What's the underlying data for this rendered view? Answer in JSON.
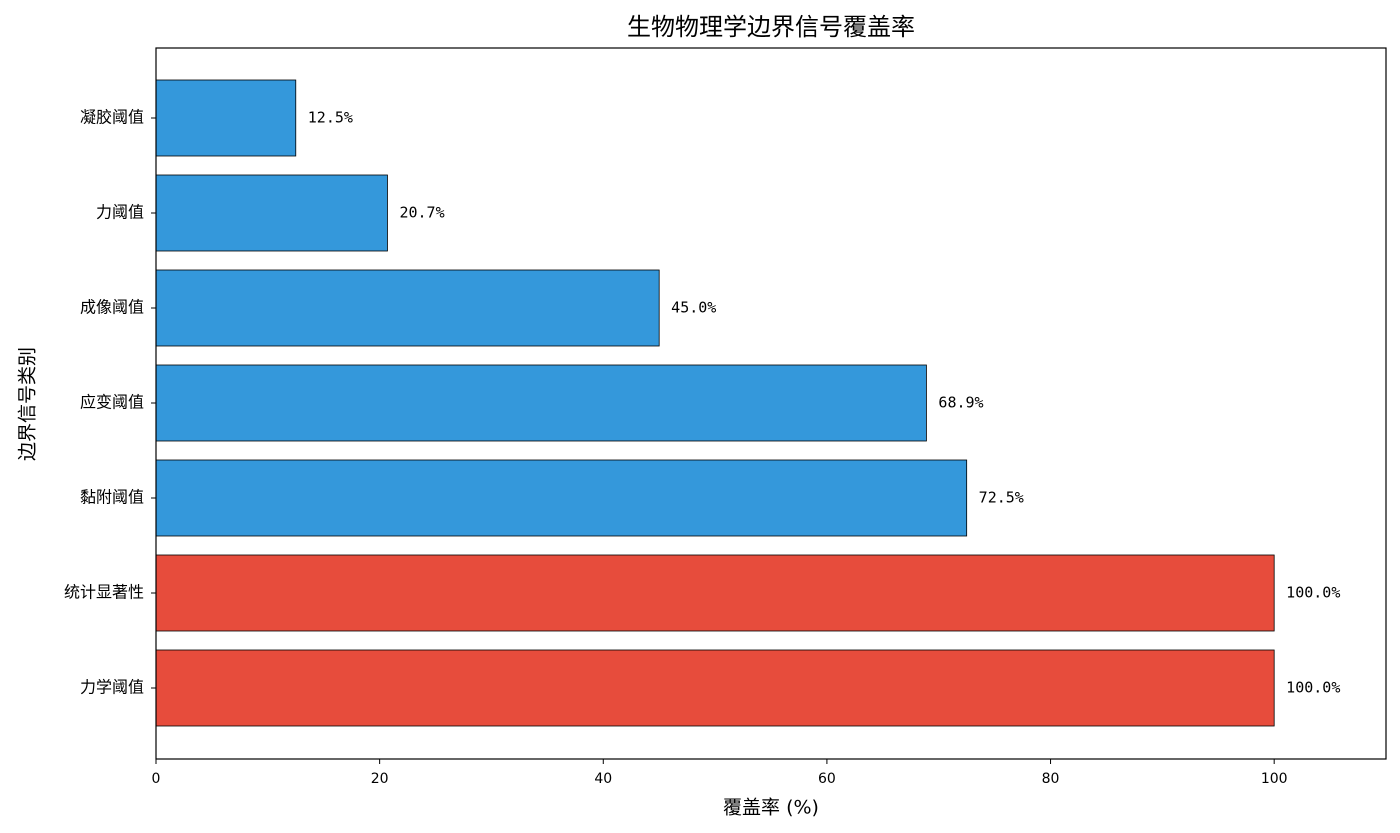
{
  "chart_data": {
    "type": "barh",
    "title": "生物物理学边界信号覆盖率",
    "xlabel": "覆盖率 (%)",
    "ylabel": "边界信号类别",
    "categories": [
      "力学阈值",
      "统计显著性",
      "黏附阈值",
      "应变阈值",
      "成像阈值",
      "力阈值",
      "凝胶阈值"
    ],
    "values": [
      100,
      100,
      72.5,
      68.9,
      45.0,
      20.7,
      12.5
    ],
    "value_labels": [
      "100.0%",
      "100.0%",
      "72.5%",
      "68.9%",
      "45.0%",
      "20.7%",
      "12.5%"
    ],
    "colors": [
      "#e74c3c",
      "#e74c3c",
      "#3498db",
      "#3498db",
      "#3498db",
      "#3498db",
      "#3498db"
    ],
    "xlim": [
      0,
      110
    ],
    "xticks": [
      0,
      20,
      40,
      60,
      80,
      100
    ]
  }
}
